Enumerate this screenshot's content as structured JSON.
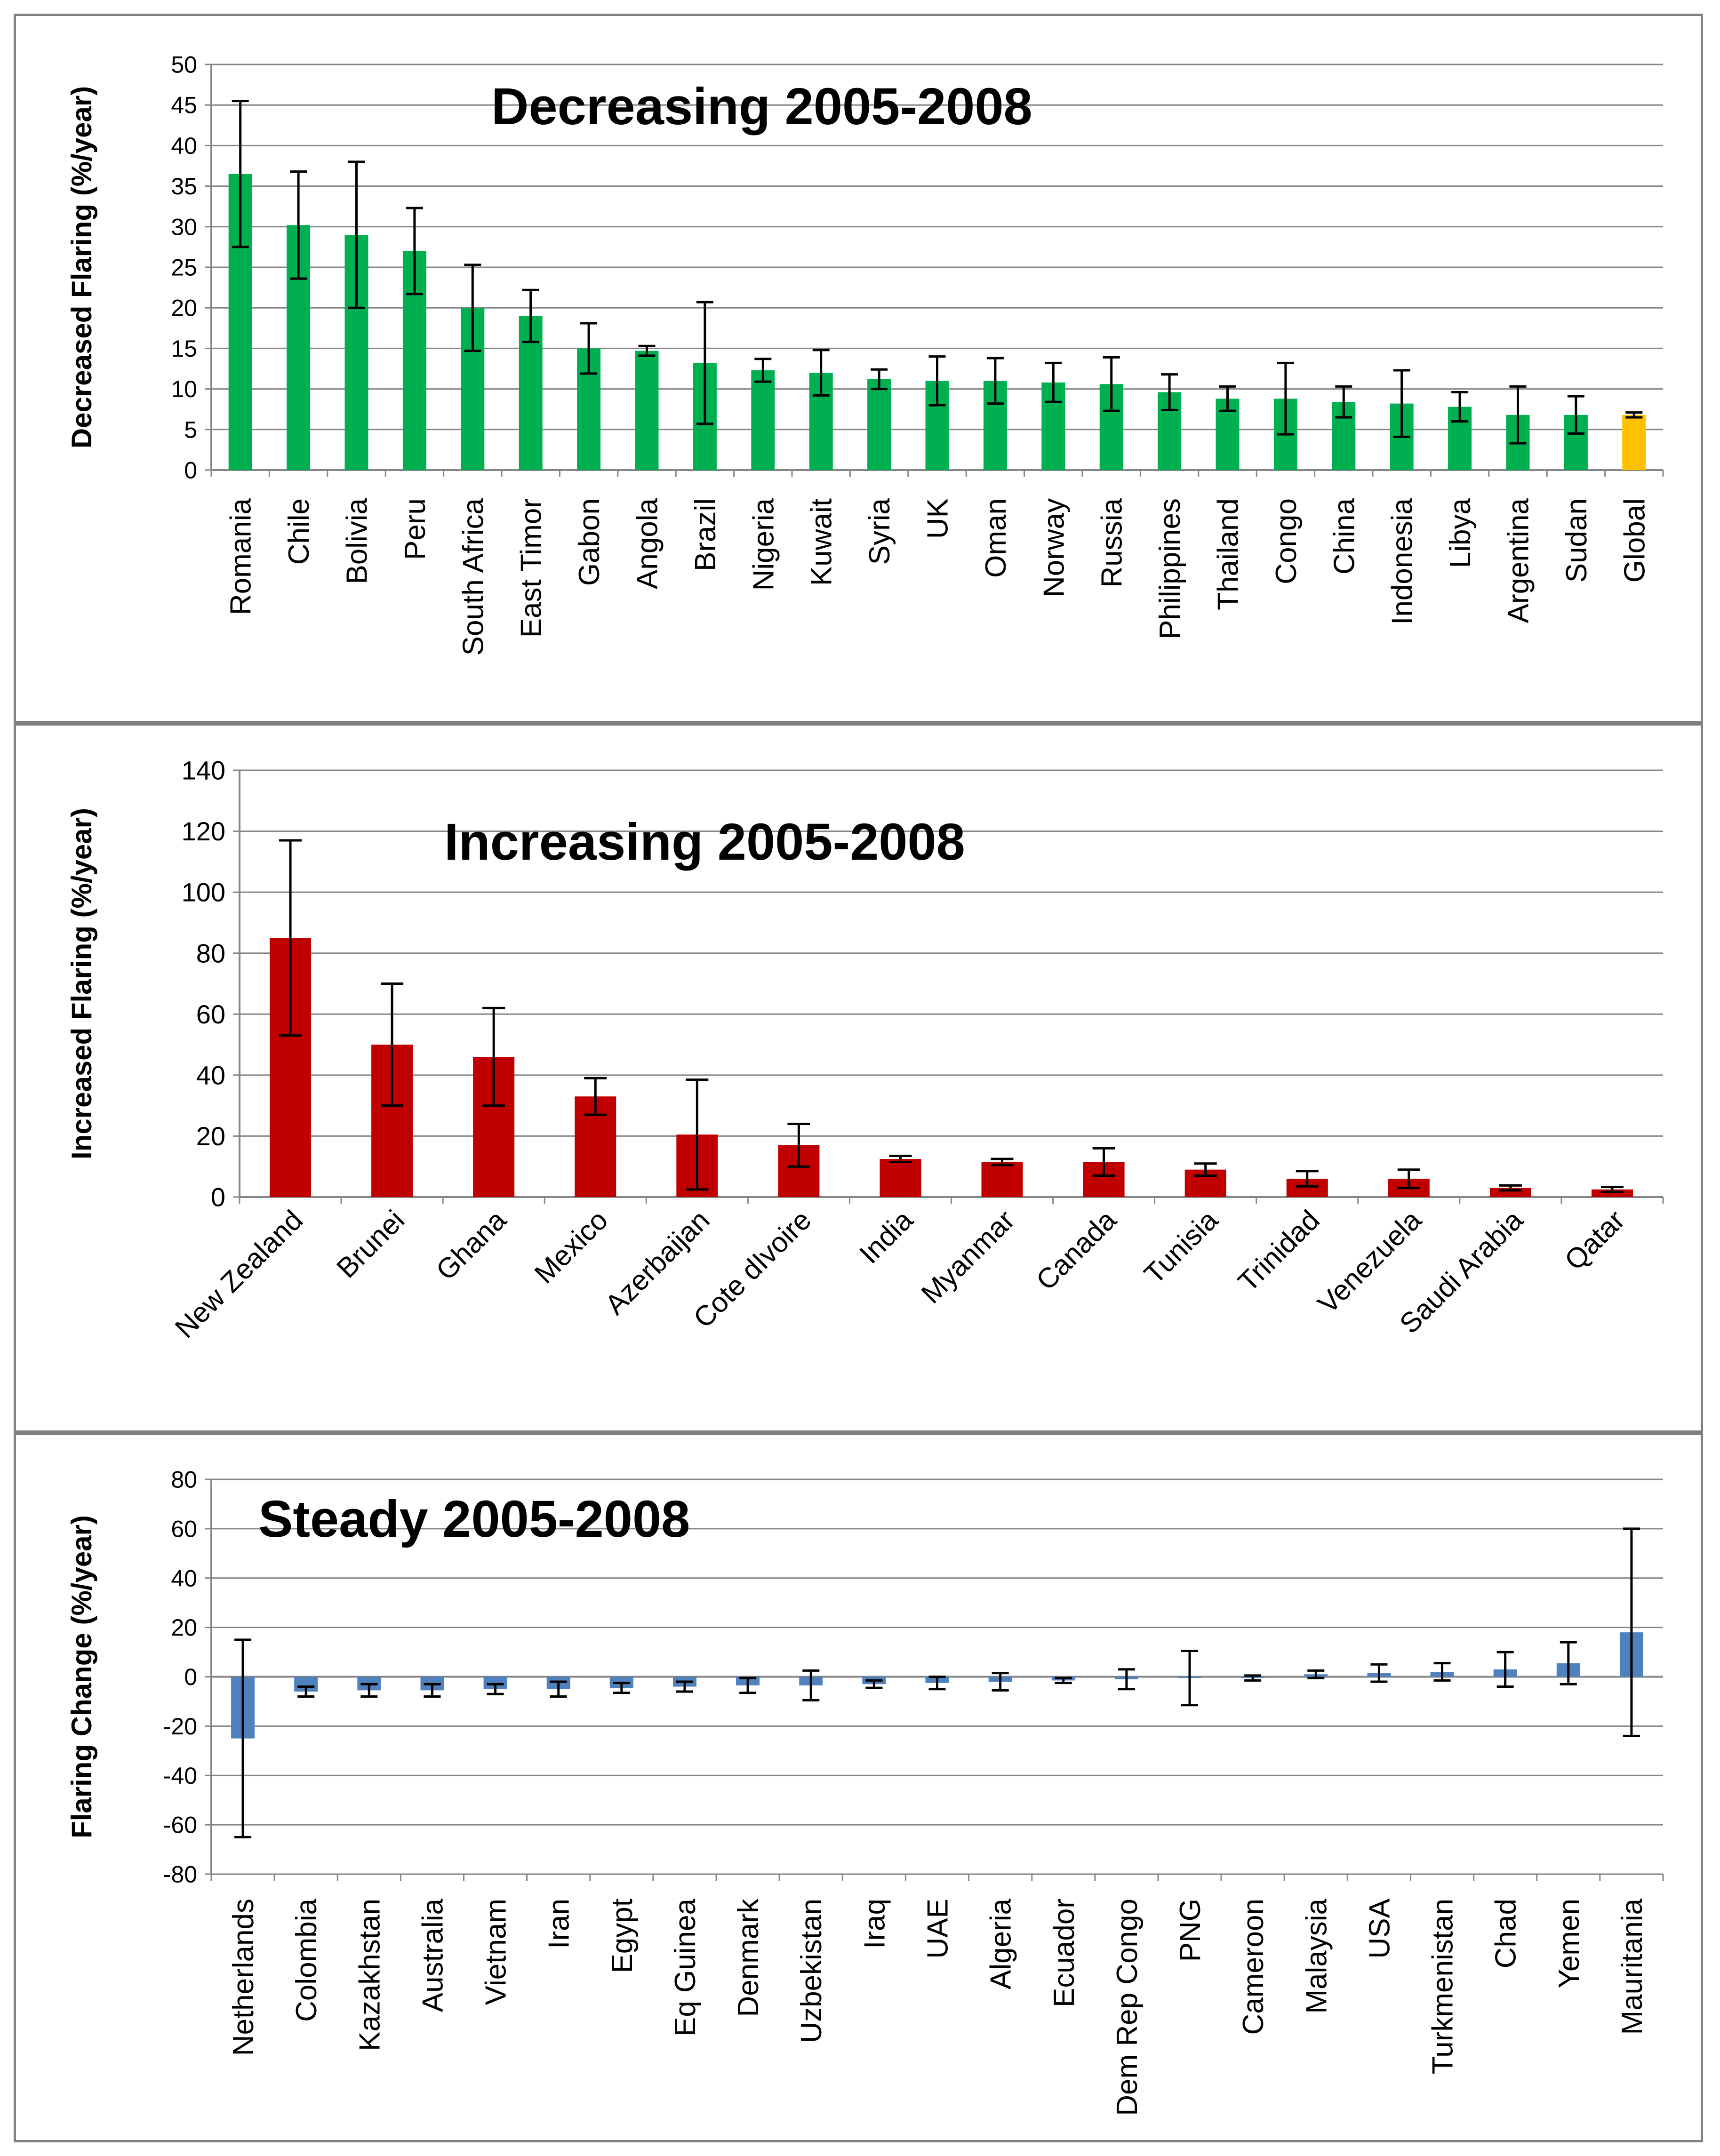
{
  "chart_data": [
    {
      "type": "bar",
      "title": "Decreasing 2005-2008",
      "ylabel": "Decreased Flaring (%/year)",
      "xlabel": "",
      "ylim": [
        0,
        50
      ],
      "yticks": [
        0,
        5,
        10,
        15,
        20,
        25,
        30,
        35,
        40,
        45,
        50
      ],
      "grid": true,
      "label_rotation": -90,
      "series_color": "#00b050",
      "highlight_color": "#ffc000",
      "highlight_index": 24,
      "categories": [
        "Romania",
        "Chile",
        "Bolivia",
        "Peru",
        "South Africa",
        "East Timor",
        "Gabon",
        "Angola",
        "Brazil",
        "Nigeria",
        "Kuwait",
        "Syria",
        "UK",
        "Oman",
        "Norway",
        "Russia",
        "Philippines",
        "Thailand",
        "Congo",
        "China",
        "Indonesia",
        "Libya",
        "Argentina",
        "Sudan",
        "Global"
      ],
      "values": [
        36.5,
        30.2,
        29.0,
        27.0,
        20.0,
        19.0,
        15.0,
        14.7,
        13.2,
        12.3,
        12.0,
        11.2,
        11.0,
        11.0,
        10.8,
        10.6,
        9.6,
        8.8,
        8.8,
        8.4,
        8.2,
        7.8,
        6.8,
        6.8,
        6.8
      ],
      "errors": [
        9.0,
        6.6,
        9.0,
        5.3,
        5.3,
        3.2,
        3.1,
        0.6,
        7.5,
        1.4,
        2.8,
        1.2,
        3.0,
        2.8,
        2.4,
        3.3,
        2.2,
        1.5,
        4.4,
        1.9,
        4.1,
        1.8,
        3.5,
        2.3,
        0.3
      ]
    },
    {
      "type": "bar",
      "title": "Increasing 2005-2008",
      "ylabel": "Increased Flaring (%/year)",
      "xlabel": "",
      "ylim": [
        0,
        140
      ],
      "yticks": [
        0,
        20,
        40,
        60,
        80,
        100,
        120,
        140
      ],
      "grid": true,
      "label_rotation": -45,
      "series_color": "#c00000",
      "categories": [
        "New Zealand",
        "Brunei",
        "Ghana",
        "Mexico",
        "Azerbaijan",
        "Cote dIvoire",
        "India",
        "Myanmar",
        "Canada",
        "Tunisia",
        "Trinidad",
        "Venezuela",
        "Saudi Arabia",
        "Qatar"
      ],
      "values": [
        85.0,
        50.0,
        46.0,
        33.0,
        20.5,
        17.0,
        12.5,
        11.5,
        11.5,
        9.0,
        6.0,
        6.0,
        3.0,
        2.5
      ],
      "errors": [
        32.0,
        20.0,
        16.0,
        6.0,
        18.0,
        7.0,
        1.0,
        1.0,
        4.5,
        2.0,
        2.5,
        3.0,
        0.8,
        0.8
      ]
    },
    {
      "type": "bar",
      "title": "Steady 2005-2008",
      "ylabel": "Flaring Change (%/year)",
      "xlabel": "",
      "ylim": [
        -80,
        80
      ],
      "yticks": [
        -80,
        -60,
        -40,
        -20,
        0,
        20,
        40,
        60,
        80
      ],
      "grid": true,
      "label_rotation": -90,
      "series_color": "#4f81bd",
      "categories": [
        "Netherlands",
        "Colombia",
        "Kazakhstan",
        "Australia",
        "Vietnam",
        "Iran",
        "Egypt",
        "Eq Guinea",
        "Denmark",
        "Uzbekistan",
        "Iraq",
        "UAE",
        "Algeria",
        "Ecuador",
        "Dem Rep Congo",
        "PNG",
        "Cameroon",
        "Malaysia",
        "USA",
        "Turkmenistan",
        "Chad",
        "Yemen",
        "Mauritania"
      ],
      "values": [
        -25.0,
        -6.0,
        -5.5,
        -5.5,
        -5.0,
        -5.0,
        -4.5,
        -4.0,
        -3.5,
        -3.5,
        -3.0,
        -2.5,
        -2.0,
        -1.5,
        -1.0,
        -0.5,
        -0.5,
        1.0,
        1.5,
        2.0,
        3.0,
        5.5,
        18.0
      ],
      "errors": [
        40.0,
        2.0,
        2.5,
        2.5,
        2.0,
        3.0,
        2.0,
        2.0,
        3.0,
        6.0,
        1.5,
        2.5,
        3.5,
        1.0,
        4.0,
        11.0,
        1.0,
        1.5,
        3.5,
        3.5,
        7.0,
        8.5,
        42.0
      ]
    }
  ]
}
